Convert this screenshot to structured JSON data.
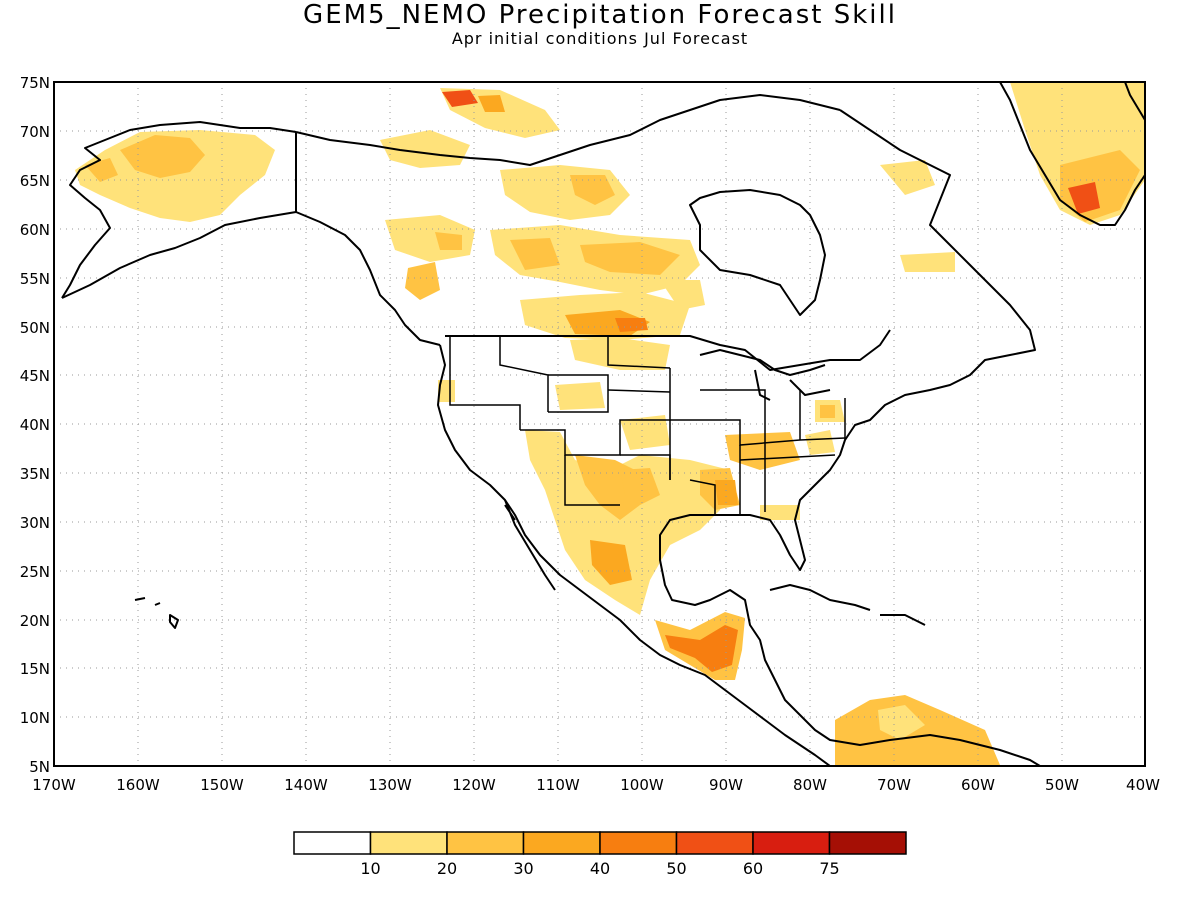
{
  "title": "GEM5_NEMO Precipitation Forecast Skill",
  "subtitle": "Apr initial conditions   Jul Forecast",
  "map": {
    "lat_labels": [
      "75N",
      "70N",
      "65N",
      "60N",
      "55N",
      "50N",
      "45N",
      "40N",
      "35N",
      "30N",
      "25N",
      "20N",
      "15N",
      "10N",
      "5N"
    ],
    "lon_labels": [
      "170W",
      "160W",
      "150W",
      "140W",
      "130W",
      "120W",
      "110W",
      "100W",
      "90W",
      "80W",
      "70W",
      "60W",
      "50W",
      "40W"
    ],
    "lat_range": [
      5,
      75
    ],
    "lon_range": [
      -170,
      -40
    ],
    "grid": "dotted"
  },
  "colorbar": {
    "labels": [
      "10",
      "20",
      "30",
      "40",
      "50",
      "60",
      "75"
    ],
    "colors": [
      "#ffffff",
      "#ffe27a",
      "#ffc343",
      "#fba820",
      "#f77e10",
      "#f05015",
      "#d81e10",
      "#a50f05"
    ]
  },
  "colors": {
    "level_10": "#ffe27a",
    "level_20": "#ffc343",
    "level_30": "#fba820",
    "level_40": "#f77e10",
    "level_50": "#f05015"
  }
}
